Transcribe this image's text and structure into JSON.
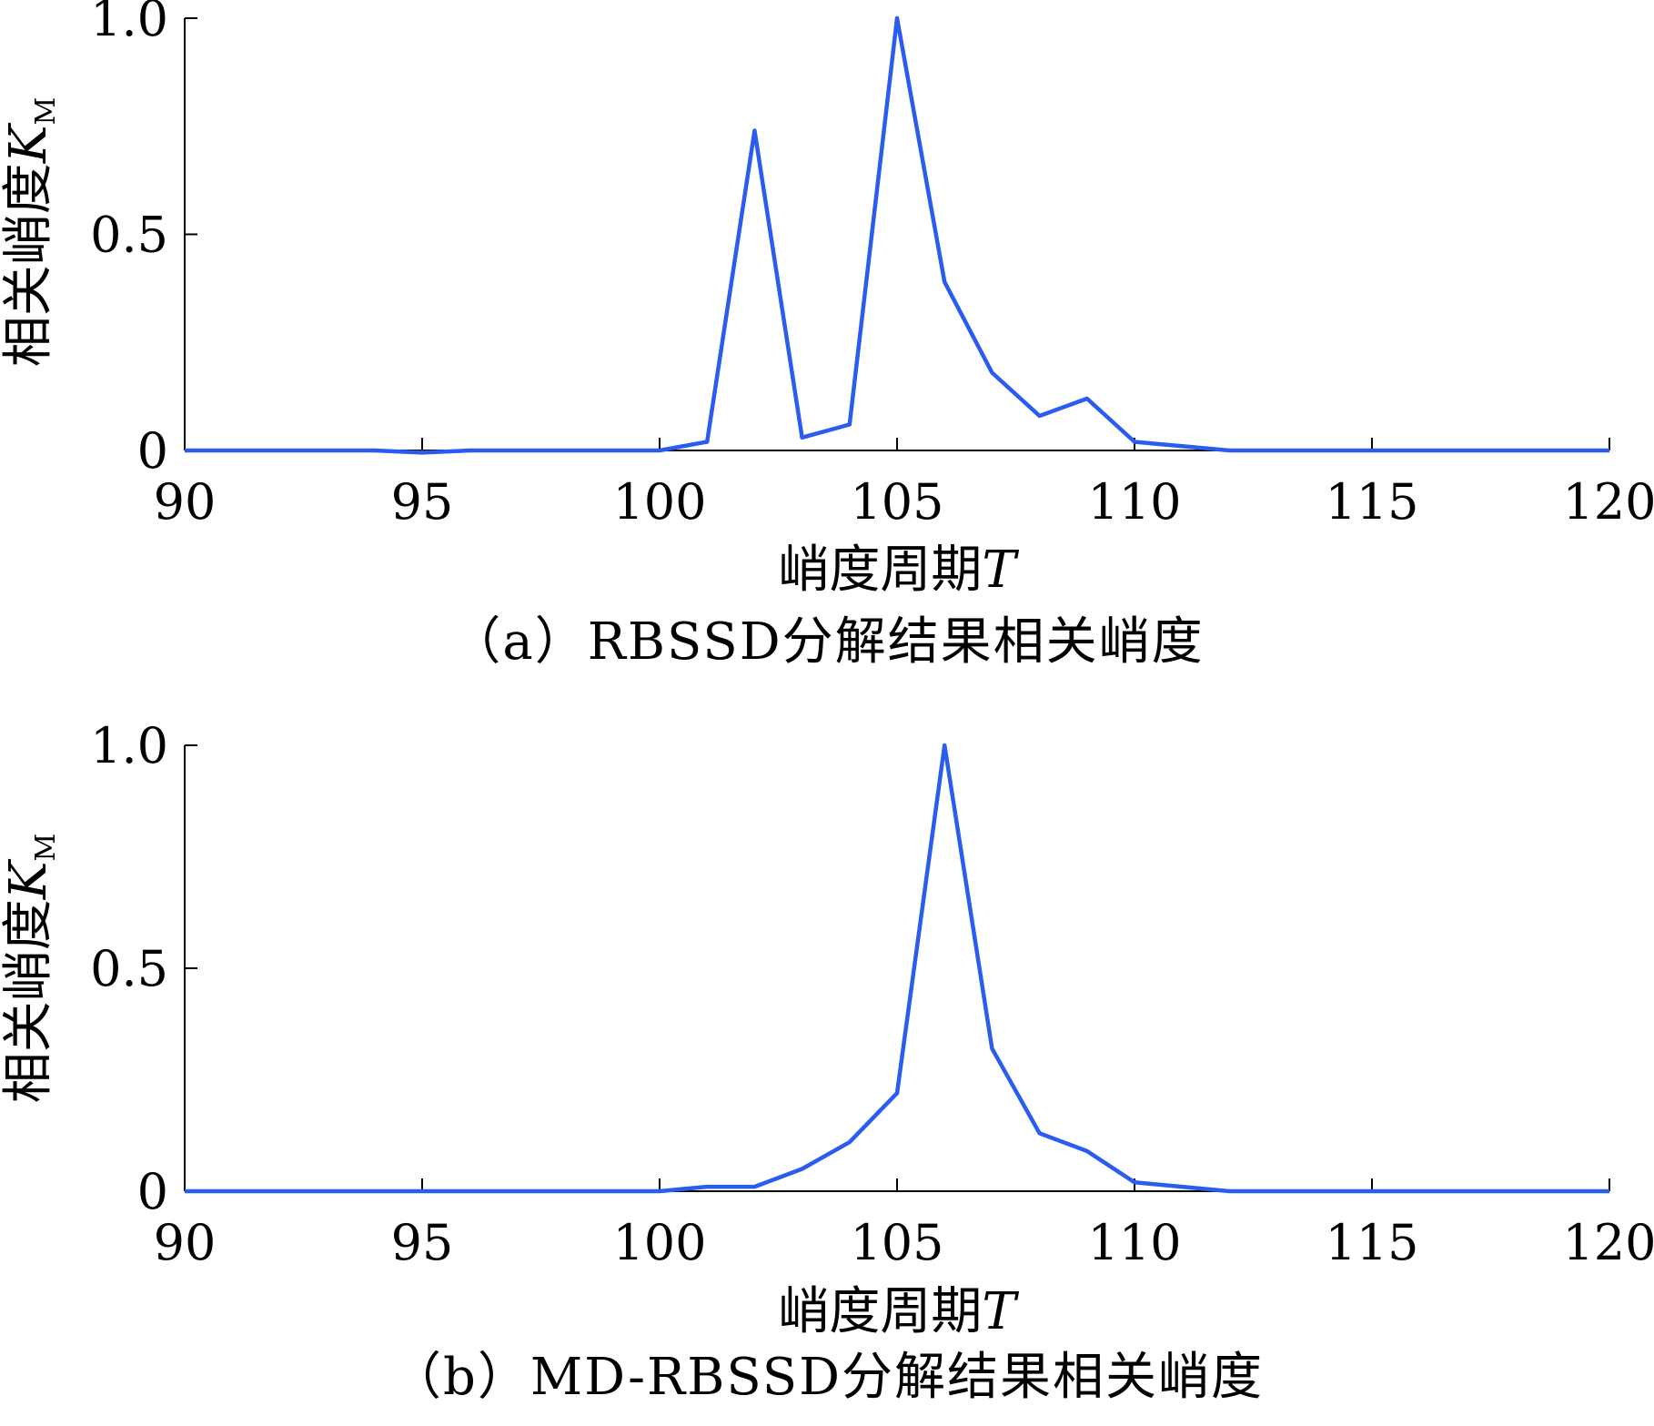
{
  "chart_data": [
    {
      "type": "line",
      "xlabel_text": "峭度周期",
      "xlabel_var": "T",
      "ylabel_text": "相关峭度",
      "ylabel_var": "K",
      "ylabel_sub": "M",
      "xlim": [
        90,
        120
      ],
      "ylim": [
        0,
        1.0
      ],
      "xticks": [
        "90",
        "95",
        "100",
        "105",
        "110",
        "115",
        "120"
      ],
      "xtick_values": [
        90,
        95,
        100,
        105,
        110,
        115,
        120
      ],
      "yticks": [
        "0",
        "0.5",
        "1.0"
      ],
      "ytick_values": [
        0,
        0.5,
        1.0
      ],
      "grid": false,
      "series": [
        {
          "color": "#2b5cf0",
          "x": [
            90,
            91,
            92,
            93,
            94,
            95,
            96,
            97,
            98,
            99,
            100,
            101,
            102,
            103,
            104,
            105,
            106,
            107,
            108,
            109,
            110,
            111,
            112,
            113,
            114,
            115,
            116,
            117,
            118,
            119,
            120
          ],
          "y": [
            0,
            0,
            0,
            0,
            0,
            -0.005,
            0,
            0,
            0,
            0,
            0,
            0.02,
            0.74,
            0.03,
            0.06,
            1.0,
            0.39,
            0.18,
            0.08,
            0.12,
            0.02,
            0.01,
            0,
            0,
            0,
            0,
            0,
            0,
            0,
            0,
            0
          ]
        }
      ],
      "caption": "（a）RBSSD分解结果相关峭度"
    },
    {
      "type": "line",
      "xlabel_text": "峭度周期",
      "xlabel_var": "T",
      "ylabel_text": "相关峭度",
      "ylabel_var": "K",
      "ylabel_sub": "M",
      "xlim": [
        90,
        120
      ],
      "ylim": [
        0,
        1.0
      ],
      "xticks": [
        "90",
        "95",
        "100",
        "105",
        "110",
        "115",
        "120"
      ],
      "xtick_values": [
        90,
        95,
        100,
        105,
        110,
        115,
        120
      ],
      "yticks": [
        "0",
        "0.5",
        "1.0"
      ],
      "ytick_values": [
        0,
        0.5,
        1.0
      ],
      "grid": false,
      "series": [
        {
          "color": "#2b5cf0",
          "x": [
            90,
            91,
            92,
            93,
            94,
            95,
            96,
            97,
            98,
            99,
            100,
            101,
            102,
            103,
            104,
            105,
            106,
            107,
            108,
            109,
            110,
            111,
            112,
            113,
            114,
            115,
            116,
            117,
            118,
            119,
            120
          ],
          "y": [
            0,
            0,
            0,
            0,
            0,
            0,
            0,
            0,
            0,
            0,
            0,
            0.01,
            0.01,
            0.05,
            0.11,
            0.22,
            1.0,
            0.32,
            0.13,
            0.09,
            0.02,
            0.01,
            0,
            0,
            0,
            0,
            0,
            0,
            0,
            0,
            0
          ]
        }
      ],
      "caption": "（b）MD-RBSSD分解结果相关峭度"
    }
  ]
}
